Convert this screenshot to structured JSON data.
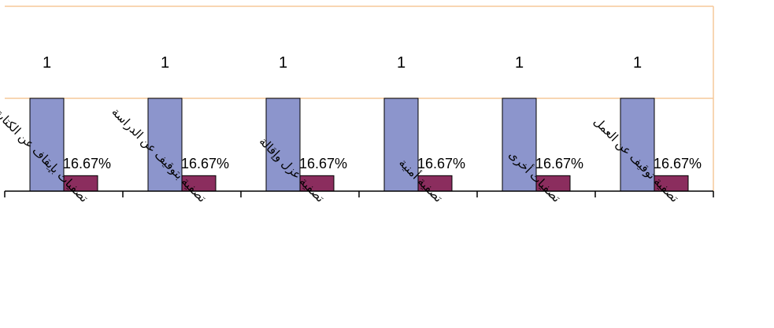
{
  "chart_data": {
    "type": "bar",
    "title": "",
    "xlabel": "",
    "ylabel": "",
    "categories": [
      "تصفيات بإيقاف عن الكتابة",
      "تصفية بتوقيف عن الدراسة",
      "تصفية عزل وإقالة",
      "تصفية أمنية",
      "تصفيات أخرى",
      "تصفية توقيف عن العمل"
    ],
    "series": [
      {
        "values": [
          1,
          1,
          1,
          1,
          1,
          1
        ],
        "data_labels": [
          "1",
          "1",
          "1",
          "1",
          "1",
          "1"
        ],
        "color": "#8c95cc"
      },
      {
        "values": [
          0.1667,
          0.1667,
          0.1667,
          0.1667,
          0.1667,
          0.1667
        ],
        "data_labels": [
          "16.67%",
          "16.67%",
          "16.67%",
          "16.67%",
          "16.67%",
          "16.67%"
        ],
        "color": "#8b2d5e"
      }
    ],
    "ylim": [
      0,
      2
    ],
    "grid": true,
    "legend": "none",
    "colors": {
      "gridline": "#f5c89a",
      "axis": "#000000"
    }
  }
}
